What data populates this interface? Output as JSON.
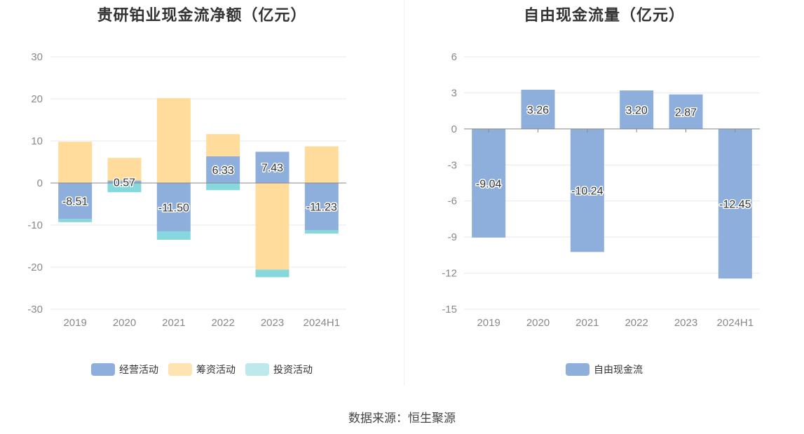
{
  "colors": {
    "operating": "#8eaedc",
    "financing": "#ffdb9c",
    "investing": "#86d8dc",
    "free_cash_flow": "#8eaedc",
    "grid": "#e6e9f0",
    "axis_text": "#888888",
    "zero_line": "#888888"
  },
  "source": "数据来源：恒生聚源",
  "chart_data": [
    {
      "type": "bar",
      "stacked": true,
      "title": "贵研铂业现金流净额（亿元）",
      "categories": [
        "2019",
        "2020",
        "2021",
        "2022",
        "2023",
        "2024H1"
      ],
      "ylim": [
        -30,
        30
      ],
      "yticks": [
        30,
        20,
        10,
        0,
        -10,
        -20,
        -30
      ],
      "grid": true,
      "legend": "bottom",
      "series": [
        {
          "key": "operating",
          "name": "经营活动",
          "values": [
            -8.51,
            0.57,
            -11.5,
            6.33,
            7.43,
            -11.23
          ],
          "show_labels": true
        },
        {
          "key": "financing",
          "name": "筹资活动",
          "values": [
            9.8,
            5.4,
            20.2,
            5.3,
            -20.6,
            8.7
          ],
          "show_labels": false
        },
        {
          "key": "investing",
          "name": "投资活动",
          "values": [
            -0.8,
            -2.2,
            -2.0,
            -1.7,
            -1.8,
            -0.8
          ],
          "show_labels": false
        }
      ],
      "data_labels": [
        "-8.51",
        "0.57",
        "-11.50",
        "6.33",
        "7.43",
        "-11.23"
      ]
    },
    {
      "type": "bar",
      "stacked": false,
      "title": "自由现金流量（亿元）",
      "categories": [
        "2019",
        "2020",
        "2021",
        "2022",
        "2023",
        "2024H1"
      ],
      "ylim": [
        -15,
        6
      ],
      "yticks": [
        6,
        3,
        0,
        -3,
        -6,
        -9,
        -12,
        -15
      ],
      "grid": true,
      "legend": "bottom",
      "series": [
        {
          "key": "free_cash_flow",
          "name": "自由现金流",
          "values": [
            -9.04,
            3.26,
            -10.24,
            3.2,
            2.87,
            -12.45
          ],
          "show_labels": true
        }
      ],
      "data_labels": [
        "-9.04",
        "3.26",
        "-10.24",
        "3.20",
        "2.87",
        "-12.45"
      ]
    }
  ]
}
